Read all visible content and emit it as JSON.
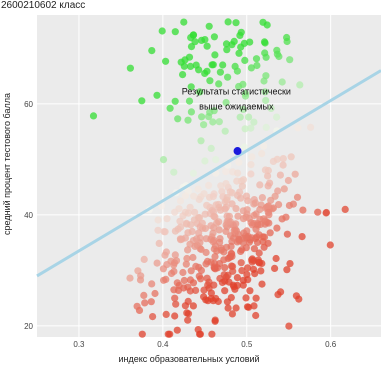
{
  "title": "2600210602 класс",
  "chart_data": {
    "type": "scatter",
    "title": "2600210602 класс",
    "xlabel": "индекс образовательных условий",
    "ylabel": "средний процент тестового балла",
    "xlim": [
      0.25,
      0.66
    ],
    "ylim": [
      18,
      76
    ],
    "x_ticks": [
      "0.3",
      "0.4",
      "0.5",
      "0.6"
    ],
    "x_tick_values": [
      0.3,
      0.4,
      0.5,
      0.6
    ],
    "y_ticks": [
      "20",
      "40",
      "60"
    ],
    "y_tick_values": [
      20,
      40,
      60
    ],
    "grid": true,
    "background": "#ebebeb",
    "annotation": [
      "Результаты статистически",
      "выше ожидаемых"
    ],
    "annotation_anchor": [
      0.49,
      62
    ],
    "regression_line": {
      "points": [
        [
          0.25,
          29
        ],
        [
          0.66,
          66
        ]
      ],
      "color": "#a8d4e6"
    },
    "highlight_point": {
      "x": 0.489,
      "y": 51.5,
      "color": "#1a1adc"
    },
    "point_colors": {
      "above": "#33dd33",
      "below": "#e0412c",
      "near": "#f5f5ee"
    }
  }
}
